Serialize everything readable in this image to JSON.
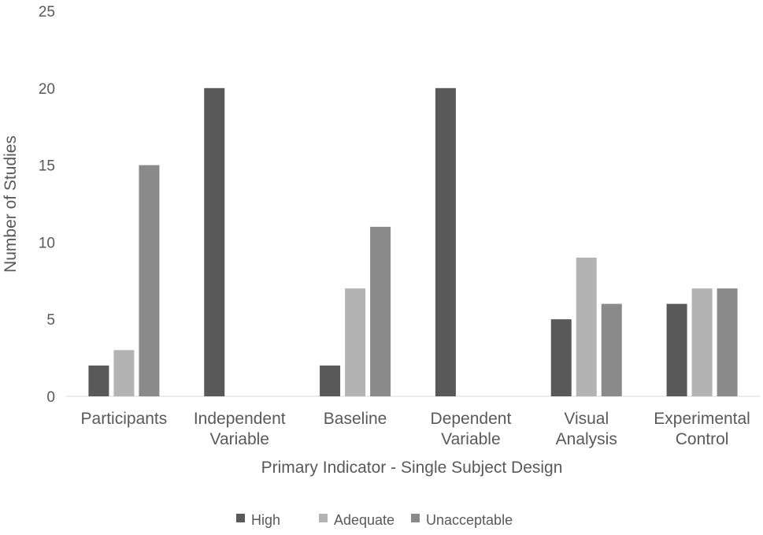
{
  "chart_data": {
    "type": "bar",
    "title": "",
    "xlabel": "Primary Indicator - Single Subject Design",
    "ylabel": "Number of Studies",
    "ylim": [
      0,
      25
    ],
    "yticks": [
      0,
      5,
      10,
      15,
      20,
      25
    ],
    "grid": false,
    "legend_position": "bottom",
    "categories": [
      [
        "Participants"
      ],
      [
        "Independent",
        "Variable"
      ],
      [
        "Baseline"
      ],
      [
        "Dependent",
        "Variable"
      ],
      [
        "Visual",
        "Analysis"
      ],
      [
        "Experimental",
        "Control"
      ]
    ],
    "series": [
      {
        "name": "High",
        "color": "#595959",
        "values": [
          2,
          20,
          2,
          20,
          5,
          6
        ]
      },
      {
        "name": "Adequate",
        "color": "#b3b3b3",
        "values": [
          3,
          0,
          7,
          0,
          9,
          7
        ]
      },
      {
        "name": "Unacceptable",
        "color": "#8a8a8a",
        "values": [
          15,
          0,
          11,
          0,
          6,
          7
        ]
      }
    ]
  }
}
